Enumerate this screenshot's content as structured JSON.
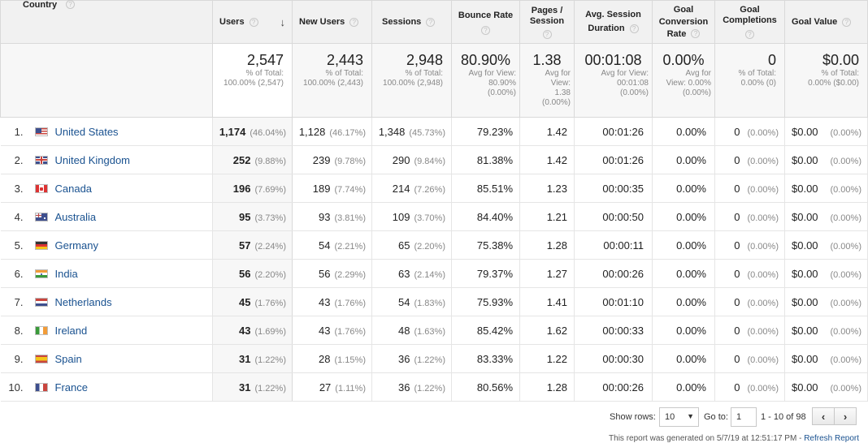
{
  "columns": {
    "country": "Country",
    "users": "Users",
    "new_users": "New Users",
    "sessions": "Sessions",
    "bounce_rate": "Bounce Rate",
    "pages_session_1": "Pages /",
    "pages_session_2": "Session",
    "avg_duration_1": "Avg. Session",
    "avg_duration_2": "Duration",
    "goal_conv_1": "Goal",
    "goal_conv_2": "Conversion",
    "goal_conv_3": "Rate",
    "goal_comp_1": "Goal",
    "goal_comp_2": "Completions",
    "goal_value": "Goal Value",
    "help_icon": "?",
    "sort_icon": "arrow-down-icon"
  },
  "totals": {
    "users": {
      "value": "2,547",
      "sub1": "% of Total:",
      "sub2": "100.00% (2,547)"
    },
    "new_users": {
      "value": "2,443",
      "sub1": "% of Total:",
      "sub2": "100.00% (2,443)"
    },
    "sessions": {
      "value": "2,948",
      "sub1": "% of Total:",
      "sub2": "100.00% (2,948)"
    },
    "bounce_rate": {
      "value": "80.90%",
      "sub1": "Avg for View:",
      "sub2": "80.90%",
      "sub3": "(0.00%)"
    },
    "pages_session": {
      "value": "1.38",
      "sub1": "Avg for",
      "sub2": "View:",
      "sub3": "1.38",
      "sub4": "(0.00%)"
    },
    "avg_duration": {
      "value": "00:01:08",
      "sub1": "Avg for View:",
      "sub2": "00:01:08",
      "sub3": "(0.00%)"
    },
    "goal_conv": {
      "value": "0.00%",
      "sub1": "Avg for",
      "sub2": "View: 0.00%",
      "sub3": "(0.00%)"
    },
    "goal_comp": {
      "value": "0",
      "sub1": "% of Total:",
      "sub2": "0.00% (0)"
    },
    "goal_value": {
      "value": "$0.00",
      "sub1": "% of Total:",
      "sub2": "0.00% ($0.00)"
    }
  },
  "rows": [
    {
      "rank": "1.",
      "flag": "us",
      "country": "United States",
      "users": "1,174",
      "users_pct": "(46.04%)",
      "new_users": "1,128",
      "new_users_pct": "(46.17%)",
      "sessions": "1,348",
      "sessions_pct": "(45.73%)",
      "bounce": "79.23%",
      "pages": "1.42",
      "duration": "00:01:26",
      "conv": "0.00%",
      "comp": "0",
      "comp_pct": "(0.00%)",
      "value": "$0.00",
      "value_pct": "(0.00%)"
    },
    {
      "rank": "2.",
      "flag": "uk",
      "country": "United Kingdom",
      "users": "252",
      "users_pct": "(9.88%)",
      "new_users": "239",
      "new_users_pct": "(9.78%)",
      "sessions": "290",
      "sessions_pct": "(9.84%)",
      "bounce": "81.38%",
      "pages": "1.42",
      "duration": "00:01:26",
      "conv": "0.00%",
      "comp": "0",
      "comp_pct": "(0.00%)",
      "value": "$0.00",
      "value_pct": "(0.00%)"
    },
    {
      "rank": "3.",
      "flag": "ca",
      "country": "Canada",
      "users": "196",
      "users_pct": "(7.69%)",
      "new_users": "189",
      "new_users_pct": "(7.74%)",
      "sessions": "214",
      "sessions_pct": "(7.26%)",
      "bounce": "85.51%",
      "pages": "1.23",
      "duration": "00:00:35",
      "conv": "0.00%",
      "comp": "0",
      "comp_pct": "(0.00%)",
      "value": "$0.00",
      "value_pct": "(0.00%)"
    },
    {
      "rank": "4.",
      "flag": "au",
      "country": "Australia",
      "users": "95",
      "users_pct": "(3.73%)",
      "new_users": "93",
      "new_users_pct": "(3.81%)",
      "sessions": "109",
      "sessions_pct": "(3.70%)",
      "bounce": "84.40%",
      "pages": "1.21",
      "duration": "00:00:50",
      "conv": "0.00%",
      "comp": "0",
      "comp_pct": "(0.00%)",
      "value": "$0.00",
      "value_pct": "(0.00%)"
    },
    {
      "rank": "5.",
      "flag": "de",
      "country": "Germany",
      "users": "57",
      "users_pct": "(2.24%)",
      "new_users": "54",
      "new_users_pct": "(2.21%)",
      "sessions": "65",
      "sessions_pct": "(2.20%)",
      "bounce": "75.38%",
      "pages": "1.28",
      "duration": "00:00:11",
      "conv": "0.00%",
      "comp": "0",
      "comp_pct": "(0.00%)",
      "value": "$0.00",
      "value_pct": "(0.00%)"
    },
    {
      "rank": "6.",
      "flag": "in",
      "country": "India",
      "users": "56",
      "users_pct": "(2.20%)",
      "new_users": "56",
      "new_users_pct": "(2.29%)",
      "sessions": "63",
      "sessions_pct": "(2.14%)",
      "bounce": "79.37%",
      "pages": "1.27",
      "duration": "00:00:26",
      "conv": "0.00%",
      "comp": "0",
      "comp_pct": "(0.00%)",
      "value": "$0.00",
      "value_pct": "(0.00%)"
    },
    {
      "rank": "7.",
      "flag": "nl",
      "country": "Netherlands",
      "users": "45",
      "users_pct": "(1.76%)",
      "new_users": "43",
      "new_users_pct": "(1.76%)",
      "sessions": "54",
      "sessions_pct": "(1.83%)",
      "bounce": "75.93%",
      "pages": "1.41",
      "duration": "00:01:10",
      "conv": "0.00%",
      "comp": "0",
      "comp_pct": "(0.00%)",
      "value": "$0.00",
      "value_pct": "(0.00%)"
    },
    {
      "rank": "8.",
      "flag": "ie",
      "country": "Ireland",
      "users": "43",
      "users_pct": "(1.69%)",
      "new_users": "43",
      "new_users_pct": "(1.76%)",
      "sessions": "48",
      "sessions_pct": "(1.63%)",
      "bounce": "85.42%",
      "pages": "1.62",
      "duration": "00:00:33",
      "conv": "0.00%",
      "comp": "0",
      "comp_pct": "(0.00%)",
      "value": "$0.00",
      "value_pct": "(0.00%)"
    },
    {
      "rank": "9.",
      "flag": "es",
      "country": "Spain",
      "users": "31",
      "users_pct": "(1.22%)",
      "new_users": "28",
      "new_users_pct": "(1.15%)",
      "sessions": "36",
      "sessions_pct": "(1.22%)",
      "bounce": "83.33%",
      "pages": "1.22",
      "duration": "00:00:30",
      "conv": "0.00%",
      "comp": "0",
      "comp_pct": "(0.00%)",
      "value": "$0.00",
      "value_pct": "(0.00%)"
    },
    {
      "rank": "10.",
      "flag": "fr",
      "country": "France",
      "users": "31",
      "users_pct": "(1.22%)",
      "new_users": "27",
      "new_users_pct": "(1.11%)",
      "sessions": "36",
      "sessions_pct": "(1.22%)",
      "bounce": "80.56%",
      "pages": "1.28",
      "duration": "00:00:26",
      "conv": "0.00%",
      "comp": "0",
      "comp_pct": "(0.00%)",
      "value": "$0.00",
      "value_pct": "(0.00%)"
    }
  ],
  "pager": {
    "show_rows_label": "Show rows:",
    "show_rows_value": "10",
    "goto_label": "Go to:",
    "goto_value": "1",
    "range": "1 - 10 of 98",
    "prev": "‹",
    "next": "›"
  },
  "footer": {
    "generated": "This report was generated on 5/7/19 at 12:51:17 PM - ",
    "refresh": "Refresh Report"
  },
  "colors": {
    "link": "#1a5290",
    "header_bg": "#f1f1f1",
    "muted_text": "#888888"
  }
}
